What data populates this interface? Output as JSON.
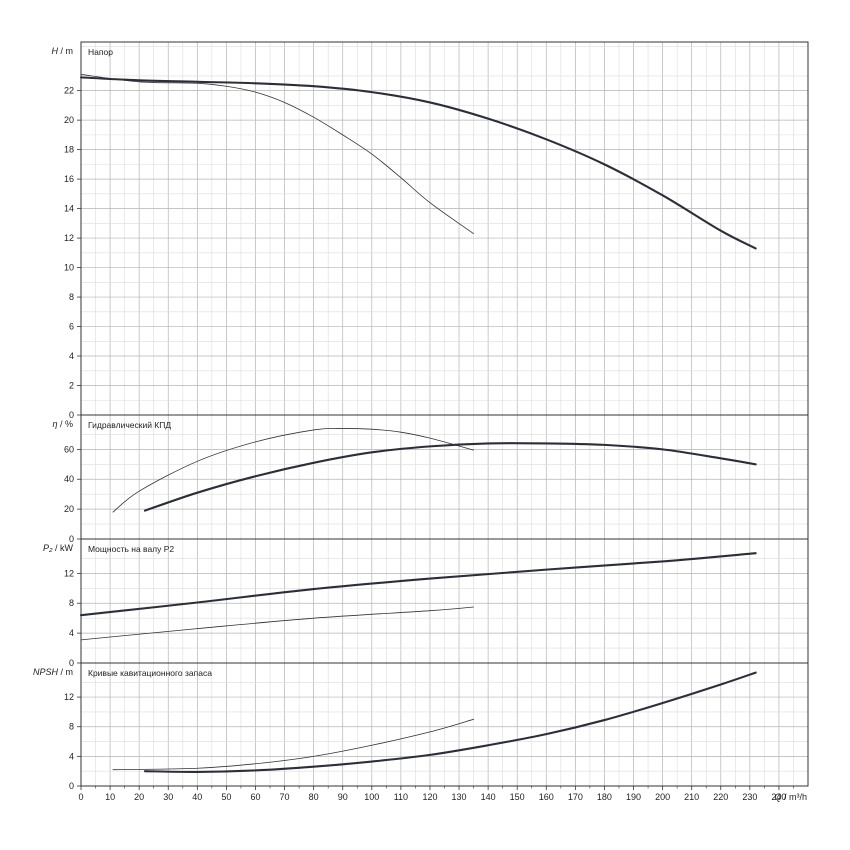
{
  "chart_data": {
    "type": "line",
    "x_axis": {
      "label_symbol": "Q",
      "label_unit": "m³/h",
      "range": [
        0,
        250
      ],
      "ticks": [
        0,
        10,
        20,
        30,
        40,
        50,
        60,
        70,
        80,
        90,
        100,
        110,
        120,
        130,
        140,
        150,
        160,
        170,
        180,
        190,
        200,
        210,
        220,
        230,
        240
      ],
      "grid": true
    },
    "panels": [
      {
        "id": "head",
        "title": "Напор",
        "y_label_symbol": "H",
        "y_label_unit": "m",
        "ylim": [
          0,
          25.3
        ],
        "yticks": [
          0,
          2,
          4,
          6,
          8,
          10,
          12,
          14,
          16,
          18,
          20,
          22
        ],
        "series": [
          {
            "x": [
              0,
              20,
              40,
              60,
              80,
              100,
              120,
              140,
              160,
              180,
              200,
              220,
              232
            ],
            "y": [
              22.9,
              22.7,
              22.6,
              22.5,
              22.3,
              21.9,
              21.2,
              20.1,
              18.7,
              17.0,
              14.9,
              12.5,
              11.3
            ],
            "weight": "bold"
          },
          {
            "x": [
              0,
              20,
              40,
              50,
              60,
              70,
              80,
              90,
              100,
              110,
              120,
              135
            ],
            "y": [
              23.1,
              22.6,
              22.5,
              22.3,
              21.9,
              21.2,
              20.2,
              19.0,
              17.7,
              16.1,
              14.4,
              12.3
            ],
            "weight": "thin"
          }
        ]
      },
      {
        "id": "efficiency",
        "title": "Гидравлический КПД",
        "y_label_symbol": "η",
        "y_label_unit": "%",
        "ylim": [
          0,
          83
        ],
        "yticks": [
          0,
          20,
          40,
          60
        ],
        "series": [
          {
            "x": [
              22,
              40,
              60,
              80,
              100,
              120,
              140,
              160,
              180,
              200,
              220,
              232
            ],
            "y": [
              19,
              31,
              42,
              51,
              58,
              62,
              64,
              64,
              63,
              60,
              54,
              50
            ],
            "weight": "bold"
          },
          {
            "x": [
              11,
              20,
              40,
              60,
              80,
              90,
              100,
              110,
              120,
              135
            ],
            "y": [
              18,
              32,
              52,
              65,
              73,
              74,
              73.5,
              71.5,
              67.5,
              59.5
            ],
            "weight": "thin"
          }
        ]
      },
      {
        "id": "power",
        "title": "Мощность на валу P2",
        "y_label_symbol": "P₂",
        "y_label_unit": "kW",
        "ylim": [
          0,
          16.6
        ],
        "yticks": [
          0,
          4,
          8,
          12
        ],
        "series": [
          {
            "x": [
              0,
              40,
              80,
              120,
              160,
              200,
              232
            ],
            "y": [
              6.4,
              8.1,
              9.9,
              11.3,
              12.5,
              13.6,
              14.7
            ],
            "weight": "bold"
          },
          {
            "x": [
              0,
              40,
              80,
              120,
              135
            ],
            "y": [
              3.1,
              4.6,
              6.0,
              7.0,
              7.5
            ],
            "weight": "thin"
          }
        ]
      },
      {
        "id": "npsh",
        "title": "Кривые кавитационного запаса",
        "y_label_symbol": "NPSH",
        "y_label_unit": "m",
        "ylim": [
          0,
          16.6
        ],
        "yticks": [
          0,
          4,
          8,
          12
        ],
        "series": [
          {
            "x": [
              22,
              40,
              60,
              80,
              100,
              120,
              140,
              160,
              180,
              200,
              220,
              232
            ],
            "y": [
              2.0,
              1.9,
              2.1,
              2.6,
              3.3,
              4.2,
              5.5,
              7.0,
              8.9,
              11.2,
              13.7,
              15.3
            ],
            "weight": "bold"
          },
          {
            "x": [
              11,
              40,
              60,
              80,
              100,
              120,
              135
            ],
            "y": [
              2.2,
              2.4,
              3.0,
              4.0,
              5.5,
              7.3,
              9.0
            ],
            "weight": "thin"
          }
        ]
      }
    ]
  }
}
